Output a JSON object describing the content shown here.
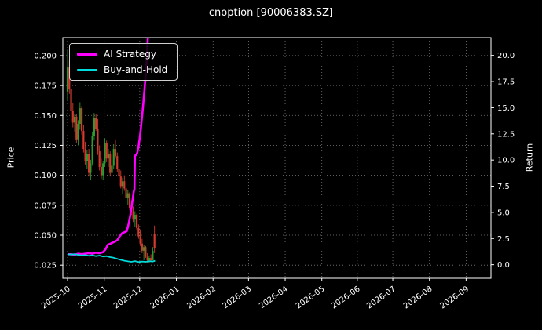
{
  "figure": {
    "title": "cnoption [90006383.SZ]",
    "background": "#000000",
    "text_color": "#ffffff",
    "grid_color": "#8a8a8a",
    "spine_color": "#ffffff"
  },
  "chart_data": {
    "type": "candlestick+line",
    "title": "cnoption [90006383.SZ]",
    "xlabel": "",
    "grid": true,
    "legend_position": "upper-left",
    "x_axis": {
      "tick_labels": [
        "2025-10",
        "2025-11",
        "2025-12",
        "2026-01",
        "2026-02",
        "2026-03",
        "2026-04",
        "2026-05",
        "2026-06",
        "2026-07",
        "2026-08",
        "2026-09"
      ],
      "tick_days": [
        0,
        31,
        61,
        92,
        123,
        153,
        184,
        215,
        245,
        275,
        306,
        337
      ],
      "domain_days": [
        -4,
        358
      ]
    },
    "y_left": {
      "label": "Price",
      "ticks": [
        0.2,
        0.175,
        0.15,
        0.125,
        0.1,
        0.075,
        0.05,
        0.025
      ],
      "tick_labels": [
        "0.200",
        "0.175",
        "0.150",
        "0.125",
        "0.100",
        "0.075",
        "0.050",
        "0.025"
      ],
      "domain": [
        0.014,
        0.215
      ]
    },
    "y_right": {
      "label": "Return",
      "ticks": [
        20.0,
        17.5,
        15.0,
        12.5,
        10.0,
        7.5,
        5.0,
        2.5,
        0.0
      ],
      "tick_labels": [
        "20.0",
        "17.5",
        "15.0",
        "12.5",
        "10.0",
        "7.5",
        "5.0",
        "2.5",
        "0.0"
      ],
      "domain": [
        -1.3,
        21.7
      ]
    },
    "candles": {
      "up_color": "#2e9b2e",
      "down_color": "#d23b2e",
      "points": [
        [
          0,
          0.17,
          0.205,
          0.163,
          0.19
        ],
        [
          1.5,
          0.19,
          0.196,
          0.168,
          0.172
        ],
        [
          3,
          0.172,
          0.195,
          0.15,
          0.154
        ],
        [
          4.5,
          0.154,
          0.16,
          0.14,
          0.144
        ],
        [
          6,
          0.144,
          0.151,
          0.136,
          0.149
        ],
        [
          7.5,
          0.149,
          0.151,
          0.127,
          0.13
        ],
        [
          9,
          0.13,
          0.146,
          0.125,
          0.143
        ],
        [
          10.5,
          0.143,
          0.161,
          0.138,
          0.156
        ],
        [
          12,
          0.156,
          0.158,
          0.134,
          0.137
        ],
        [
          13.5,
          0.137,
          0.142,
          0.119,
          0.122
        ],
        [
          15,
          0.122,
          0.128,
          0.109,
          0.112
        ],
        [
          16.5,
          0.112,
          0.121,
          0.105,
          0.118
        ],
        [
          18,
          0.118,
          0.122,
          0.099,
          0.102
        ],
        [
          19.5,
          0.102,
          0.113,
          0.096,
          0.11
        ],
        [
          21,
          0.11,
          0.136,
          0.108,
          0.133
        ],
        [
          22.5,
          0.133,
          0.152,
          0.129,
          0.148
        ],
        [
          24,
          0.148,
          0.151,
          0.137,
          0.139
        ],
        [
          25.5,
          0.139,
          0.147,
          0.117,
          0.12
        ],
        [
          27,
          0.12,
          0.125,
          0.104,
          0.107
        ],
        [
          28.5,
          0.107,
          0.114,
          0.097,
          0.1
        ],
        [
          30,
          0.1,
          0.112,
          0.096,
          0.11
        ],
        [
          31.5,
          0.11,
          0.131,
          0.107,
          0.127
        ],
        [
          33,
          0.127,
          0.129,
          0.111,
          0.114
        ],
        [
          34.5,
          0.114,
          0.122,
          0.107,
          0.118
        ],
        [
          36,
          0.118,
          0.12,
          0.099,
          0.102
        ],
        [
          37.5,
          0.102,
          0.11,
          0.094,
          0.108
        ],
        [
          39,
          0.108,
          0.126,
          0.105,
          0.122
        ],
        [
          40.5,
          0.122,
          0.13,
          0.114,
          0.116
        ],
        [
          42,
          0.116,
          0.119,
          0.103,
          0.105
        ],
        [
          43.5,
          0.105,
          0.111,
          0.097,
          0.099
        ],
        [
          45,
          0.099,
          0.104,
          0.089,
          0.091
        ],
        [
          46.5,
          0.091,
          0.098,
          0.084,
          0.095
        ],
        [
          48,
          0.095,
          0.1,
          0.087,
          0.089
        ],
        [
          49.5,
          0.089,
          0.091,
          0.079,
          0.081
        ],
        [
          51,
          0.081,
          0.088,
          0.075,
          0.085
        ],
        [
          52.5,
          0.085,
          0.086,
          0.071,
          0.073
        ],
        [
          54,
          0.073,
          0.079,
          0.067,
          0.069
        ],
        [
          55.5,
          0.069,
          0.074,
          0.061,
          0.063
        ],
        [
          57,
          0.063,
          0.07,
          0.057,
          0.067
        ],
        [
          58.5,
          0.067,
          0.068,
          0.054,
          0.056
        ],
        [
          60,
          0.056,
          0.059,
          0.047,
          0.049
        ],
        [
          61.5,
          0.049,
          0.054,
          0.041,
          0.043
        ],
        [
          63,
          0.043,
          0.047,
          0.035,
          0.037
        ],
        [
          64.5,
          0.037,
          0.042,
          0.029,
          0.04
        ],
        [
          66,
          0.04,
          0.041,
          0.031,
          0.032
        ],
        [
          67.5,
          0.032,
          0.035,
          0.027,
          0.029
        ],
        [
          69,
          0.029,
          0.033,
          0.027,
          0.031
        ],
        [
          70.5,
          0.031,
          0.034,
          0.028,
          0.029
        ],
        [
          72,
          0.029,
          0.04,
          0.029,
          0.037
        ],
        [
          73.5,
          0.051,
          0.058,
          0.035,
          0.039
        ]
      ]
    },
    "series": [
      {
        "name": "AI Strategy",
        "color": "#ff00ff",
        "width": 2.6,
        "axis": "right",
        "points": [
          [
            0,
            1.0
          ],
          [
            3,
            1.0
          ],
          [
            6,
            0.95
          ],
          [
            9,
            1.05
          ],
          [
            12,
            1.0
          ],
          [
            15,
            1.05
          ],
          [
            18,
            1.1
          ],
          [
            21,
            1.05
          ],
          [
            24,
            1.15
          ],
          [
            27,
            1.1
          ],
          [
            30,
            1.2
          ],
          [
            32,
            1.45
          ],
          [
            34,
            1.9
          ],
          [
            36,
            2.0
          ],
          [
            38,
            2.1
          ],
          [
            40,
            2.2
          ],
          [
            42,
            2.35
          ],
          [
            44,
            2.7
          ],
          [
            46,
            3.0
          ],
          [
            48,
            3.1
          ],
          [
            50,
            3.2
          ],
          [
            51,
            3.6
          ],
          [
            52,
            4.1
          ],
          [
            53,
            4.7
          ],
          [
            54,
            5.4
          ],
          [
            55,
            6.2
          ],
          [
            56,
            7.0
          ],
          [
            56.5,
            7.2
          ],
          [
            57,
            10.4
          ],
          [
            58,
            10.5
          ],
          [
            59,
            10.7
          ],
          [
            60,
            11.3
          ],
          [
            61,
            12.1
          ],
          [
            62,
            13.1
          ],
          [
            63,
            14.2
          ],
          [
            64,
            15.4
          ],
          [
            65,
            16.7
          ],
          [
            66,
            18.1
          ],
          [
            67,
            19.6
          ],
          [
            68,
            22.0
          ]
        ]
      },
      {
        "name": "Buy-and-Hold",
        "color": "#00dcdc",
        "width": 1.8,
        "axis": "right",
        "points": [
          [
            0,
            1.0
          ],
          [
            3,
            0.97
          ],
          [
            6,
            1.01
          ],
          [
            9,
            0.94
          ],
          [
            12,
            0.88
          ],
          [
            15,
            0.92
          ],
          [
            18,
            0.85
          ],
          [
            21,
            0.9
          ],
          [
            24,
            0.82
          ],
          [
            27,
            0.87
          ],
          [
            30,
            0.78
          ],
          [
            33,
            0.82
          ],
          [
            36,
            0.72
          ],
          [
            39,
            0.66
          ],
          [
            42,
            0.56
          ],
          [
            45,
            0.46
          ],
          [
            48,
            0.38
          ],
          [
            51,
            0.32
          ],
          [
            54,
            0.27
          ],
          [
            57,
            0.34
          ],
          [
            60,
            0.25
          ],
          [
            63,
            0.3
          ],
          [
            66,
            0.27
          ],
          [
            69,
            0.33
          ],
          [
            72,
            0.3
          ],
          [
            74,
            0.38
          ]
        ]
      }
    ],
    "legend": {
      "entries": [
        {
          "label": "AI Strategy",
          "color": "#ff00ff",
          "thickness": 4
        },
        {
          "label": "Buy-and-Hold",
          "color": "#00dcdc",
          "thickness": 2
        }
      ]
    }
  }
}
